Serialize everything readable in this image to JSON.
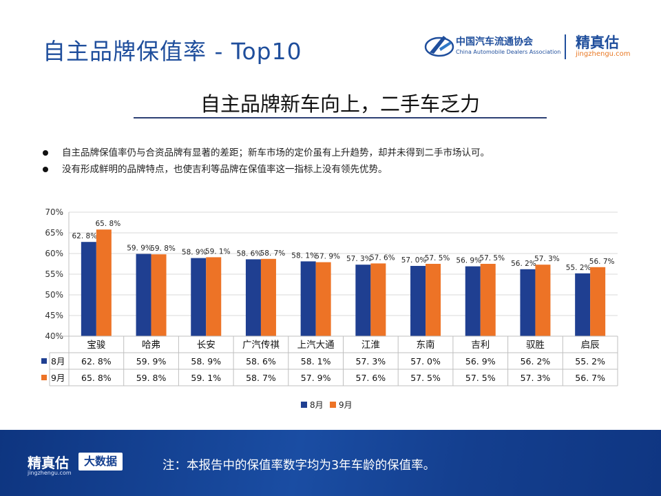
{
  "header": {
    "title": "自主品牌保值率 - Top10",
    "logo_cada_cn": "中国汽车流通协会",
    "logo_cada_en": "China Automobile Dealers Association",
    "logo_jzg_cn": "精真估",
    "logo_jzg_url": "jingzhengu.com"
  },
  "subtitle": "自主品牌新车向上，二手车乏力",
  "bullets": [
    "自主品牌保值率仍与合资品牌有显著的差距；新车市场的定价虽有上升趋势，却并未得到二手市场认可。",
    "没有形成鲜明的品牌特点，也使吉利等品牌在保值率这一指标上没有领先优势。"
  ],
  "chart_data": {
    "type": "bar",
    "categories": [
      "宝骏",
      "哈弗",
      "长安",
      "广汽传祺",
      "上汽大通",
      "江淮",
      "东南",
      "吉利",
      "驭胜",
      "启辰"
    ],
    "series": [
      {
        "name": "8月",
        "color": "#1f3f91",
        "values": [
          62.8,
          59.9,
          58.9,
          58.6,
          58.1,
          57.3,
          57.0,
          56.9,
          56.2,
          55.2
        ],
        "labels": [
          "62. 8%",
          "59. 9%",
          "58. 9%",
          "58. 6%",
          "58. 1%",
          "57. 3%",
          "57. 0%",
          "56. 9%",
          "56. 2%",
          "55. 2%"
        ]
      },
      {
        "name": "9月",
        "color": "#ed7326",
        "values": [
          65.8,
          59.8,
          59.1,
          58.7,
          57.9,
          57.6,
          57.5,
          57.5,
          57.3,
          56.7
        ],
        "labels": [
          "65. 8%",
          "59. 8%",
          "59. 1%",
          "58. 7%",
          "57. 9%",
          "57. 6%",
          "57. 5%",
          "57. 5%",
          "57. 3%",
          "56. 7%"
        ]
      }
    ],
    "ylim": [
      40,
      70
    ],
    "yticks": [
      40,
      45,
      50,
      55,
      60,
      65,
      70
    ],
    "ytick_labels": [
      "40%",
      "45%",
      "50%",
      "55%",
      "60%",
      "65%",
      "70%"
    ],
    "grid": true,
    "legend": "bottom",
    "data_table": true
  },
  "footer": {
    "brand": "精真估",
    "url": "jingzhengu.com",
    "badge": "大数据",
    "note": "注：本报告中的保值率数字均为3年车龄的保值率。"
  }
}
